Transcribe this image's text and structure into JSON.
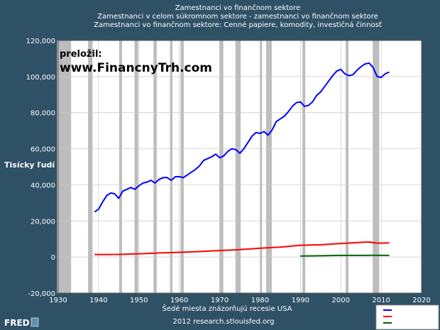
{
  "colors": {
    "background": "#2e5166",
    "plot_bg": "#ffffff",
    "recession": "#bdbdbd",
    "series_blue": "#0000ff",
    "series_red": "#ff0000",
    "series_green": "#006400"
  },
  "annotation": {
    "line1": "preložil:",
    "line2": "www.FinancnyTrh.com"
  },
  "footer": {
    "note": "Šedé miesta znázorňujú recesie USA",
    "source": "2012 research.stlouisfed.org",
    "logo": "FRED"
  },
  "chart_data": {
    "type": "line",
    "title": [
      "Zamestnanci vo finančnom sektore",
      "Zamestnanci v celom súkromnom sektore - zamestnanci vo finančnom sektore",
      "Zamestnanci vo finančnom sektore: Cenné papiere, komodity, investičná činnosť"
    ],
    "ylabel": "Tisícky ľudí",
    "xlim": [
      1930,
      2020
    ],
    "ylim": [
      -20000,
      120000
    ],
    "x_ticks": [
      1930,
      1940,
      1950,
      1960,
      1970,
      1980,
      1990,
      2000,
      2010,
      2020
    ],
    "y_ticks": [
      -20000,
      0,
      20000,
      40000,
      60000,
      80000,
      100000,
      120000
    ],
    "y_tick_labels": [
      "-20,000",
      "0",
      "20,000",
      "40,000",
      "60,000",
      "80,000",
      "100,000",
      "120,000"
    ],
    "grid": true,
    "legend": "bottom-right",
    "recessions": [
      [
        1929.7,
        1933.2
      ],
      [
        1937.4,
        1938.5
      ],
      [
        1945.1,
        1945.8
      ],
      [
        1948.9,
        1949.8
      ],
      [
        1953.6,
        1954.4
      ],
      [
        1957.7,
        1958.3
      ],
      [
        1960.3,
        1961.1
      ],
      [
        1969.9,
        1970.9
      ],
      [
        1973.9,
        1975.2
      ],
      [
        1980.0,
        1980.5
      ],
      [
        1981.5,
        1982.9
      ],
      [
        1990.5,
        1991.2
      ],
      [
        2001.2,
        2001.9
      ],
      [
        2007.9,
        2009.5
      ]
    ],
    "series": [
      {
        "color": "#0000ff",
        "x": [
          1939,
          1940,
          1941,
          1942,
          1943,
          1944,
          1945,
          1946,
          1947,
          1948,
          1949,
          1950,
          1951,
          1952,
          1953,
          1954,
          1955,
          1956,
          1957,
          1958,
          1959,
          1960,
          1961,
          1962,
          1963,
          1964,
          1965,
          1966,
          1967,
          1968,
          1969,
          1970,
          1971,
          1972,
          1973,
          1974,
          1975,
          1976,
          1977,
          1978,
          1979,
          1980,
          1981,
          1982,
          1983,
          1984,
          1985,
          1986,
          1987,
          1988,
          1989,
          1990,
          1991,
          1992,
          1993,
          1994,
          1995,
          1996,
          1997,
          1998,
          1999,
          2000,
          2001,
          2002,
          2003,
          2004,
          2005,
          2006,
          2007,
          2008,
          2009,
          2010,
          2011,
          2012
        ],
        "y": [
          25000,
          26500,
          30500,
          34000,
          35500,
          35000,
          32500,
          36500,
          37500,
          38500,
          37500,
          39500,
          41000,
          41500,
          42500,
          41000,
          43000,
          44000,
          44000,
          42500,
          44500,
          44500,
          44000,
          45500,
          47000,
          48500,
          50500,
          53500,
          54500,
          55500,
          57000,
          55000,
          56000,
          58500,
          60000,
          59500,
          57500,
          60000,
          63500,
          67000,
          69000,
          68500,
          69500,
          67500,
          70500,
          75000,
          76500,
          78000,
          80500,
          83500,
          85500,
          86000,
          83500,
          84000,
          86000,
          89500,
          91500,
          94500,
          97500,
          100500,
          103000,
          104000,
          101500,
          100500,
          101000,
          103500,
          105500,
          107000,
          107500,
          105000,
          100000,
          99500,
          101500,
          102500
        ]
      },
      {
        "color": "#ff0000",
        "x": [
          1939,
          1945,
          1950,
          1955,
          1960,
          1965,
          1970,
          1975,
          1980,
          1985,
          1990,
          1995,
          2000,
          2005,
          2007,
          2009,
          2012
        ],
        "y": [
          1400,
          1450,
          1800,
          2200,
          2600,
          3000,
          3600,
          4100,
          4900,
          5500,
          6500,
          6800,
          7500,
          8100,
          8300,
          7700,
          7800
        ]
      },
      {
        "color": "#006400",
        "x": [
          1990,
          1995,
          2000,
          2005,
          2008,
          2012
        ],
        "y": [
          550,
          700,
          900,
          900,
          950,
          900
        ]
      }
    ]
  }
}
